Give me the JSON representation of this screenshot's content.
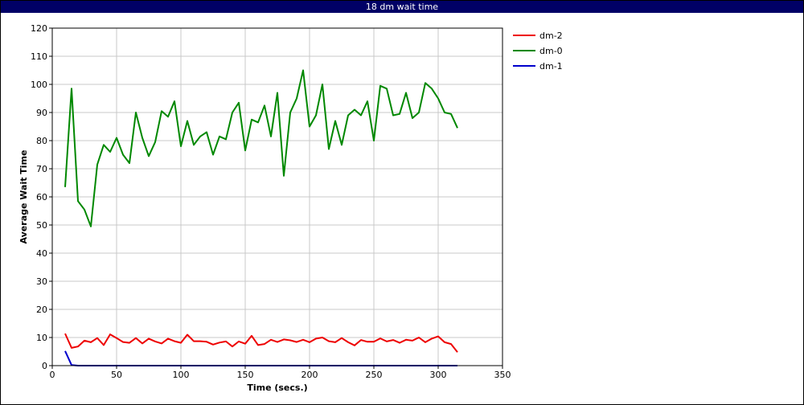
{
  "window": {
    "title": "18 dm wait time"
  },
  "colors": {
    "dm-2": "#ee0000",
    "dm-0": "#008800",
    "dm-1": "#0000cc",
    "title_bar": "#000066"
  },
  "chart_data": {
    "type": "line",
    "title": "18 dm wait time",
    "xlabel": "Time (secs.)",
    "ylabel": "Average Wait Time",
    "xlim": [
      0,
      350
    ],
    "ylim": [
      0,
      120
    ],
    "x_ticks": [
      0,
      50,
      100,
      150,
      200,
      250,
      300,
      350
    ],
    "y_ticks": [
      0,
      10,
      20,
      30,
      40,
      50,
      60,
      70,
      80,
      90,
      100,
      110,
      120
    ],
    "grid": true,
    "legend": "top-right, outside plot",
    "x": [
      10,
      15,
      20,
      25,
      30,
      35,
      40,
      45,
      50,
      55,
      60,
      65,
      70,
      75,
      80,
      85,
      90,
      95,
      100,
      105,
      110,
      115,
      120,
      125,
      130,
      135,
      140,
      145,
      150,
      155,
      160,
      165,
      170,
      175,
      180,
      185,
      190,
      195,
      200,
      205,
      210,
      215,
      220,
      225,
      230,
      235,
      240,
      245,
      250,
      255,
      260,
      265,
      270,
      275,
      280,
      285,
      290,
      295,
      300,
      305,
      310,
      315
    ],
    "series": [
      {
        "name": "dm-2",
        "color": "#ee0000",
        "values": [
          11.4,
          6.3,
          6.8,
          8.9,
          8.3,
          9.8,
          7.3,
          11.1,
          9.8,
          8.4,
          8.1,
          9.8,
          7.9,
          9.6,
          8.6,
          7.9,
          9.6,
          8.7,
          8.1,
          11,
          8.7,
          8.7,
          8.5,
          7.5,
          8.2,
          8.6,
          6.8,
          8.6,
          7.8,
          10.6,
          7.3,
          7.7,
          9.2,
          8.4,
          9.3,
          9,
          8.4,
          9.2,
          8.3,
          9.6,
          10,
          8.7,
          8.3,
          9.8,
          8.3,
          7.2,
          9.1,
          8.5,
          8.5,
          9.7,
          8.6,
          9.1,
          8.1,
          9.2,
          8.9,
          10,
          8.3,
          9.6,
          10.4,
          8.3,
          7.7,
          4.8
        ]
      },
      {
        "name": "dm-0",
        "color": "#008800",
        "values": [
          63.5,
          98.5,
          58.5,
          55.5,
          49.5,
          71.5,
          78.5,
          76,
          81,
          75,
          72,
          90,
          81,
          74.5,
          79.5,
          90.5,
          88.5,
          94,
          78,
          87,
          78.5,
          81.5,
          83,
          75,
          81.5,
          80.5,
          90,
          93.5,
          76.5,
          87.5,
          86.5,
          92.5,
          81.5,
          97,
          67.5,
          90,
          95,
          105,
          85,
          89,
          100,
          77,
          87,
          78.5,
          89,
          91,
          89,
          94,
          80,
          99.5,
          98.5,
          89,
          89.5,
          97,
          88,
          90,
          100.5,
          98.5,
          95,
          90,
          89.5,
          84.5
        ]
      },
      {
        "name": "dm-1",
        "color": "#0000cc",
        "values": [
          5.2,
          0.2,
          0,
          0,
          0,
          0,
          0,
          0,
          0,
          0,
          0,
          0,
          0,
          0,
          0,
          0,
          0,
          0,
          0,
          0,
          0,
          0,
          0,
          0,
          0,
          0,
          0,
          0,
          0,
          0,
          0,
          0,
          0,
          0,
          0,
          0,
          0,
          0,
          0,
          0,
          0,
          0,
          0,
          0,
          0,
          0,
          0,
          0,
          0,
          0,
          0,
          0,
          0,
          0,
          0,
          0,
          0,
          0,
          0,
          0,
          0,
          0
        ]
      }
    ]
  }
}
